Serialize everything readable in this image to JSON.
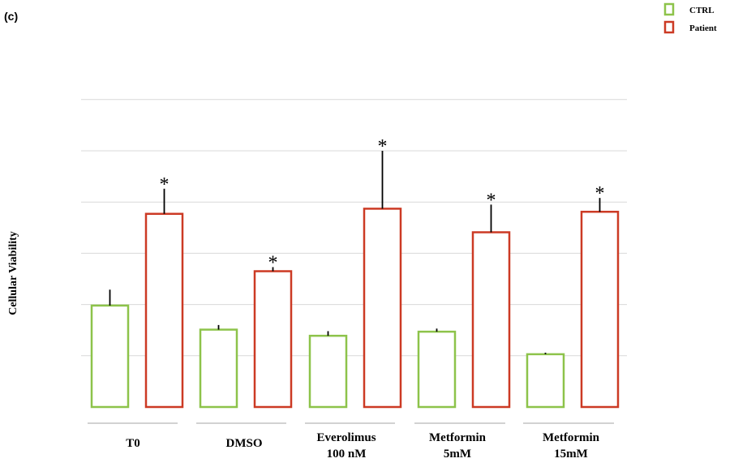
{
  "panel_label": "(c)",
  "colors": {
    "ctrl": "#8dc34a",
    "patient": "#cc3a24",
    "grid": "#d9d9d9",
    "axis_line": "#a6a6a6",
    "error": "#000000"
  },
  "chart_data": {
    "type": "bar",
    "ylabel": "Cellular Viability",
    "xlabel": "",
    "title": "",
    "ylim": [
      0,
      6
    ],
    "grid": true,
    "y_ticks_labeled": false,
    "legend_position": "top-right",
    "categories": [
      [
        "T0"
      ],
      [
        "DMSO"
      ],
      [
        "Everolimus",
        "100 nM"
      ],
      [
        "Metformin",
        "5mM"
      ],
      [
        "Metformin",
        "15mM"
      ]
    ],
    "series": [
      {
        "name": "CTRL",
        "color_key": "ctrl",
        "values": [
          1.98,
          1.51,
          1.39,
          1.47,
          1.03
        ],
        "errors": [
          0.31,
          0.09,
          0.09,
          0.06,
          0.03
        ],
        "significance": [
          "",
          "",
          "",
          "",
          ""
        ]
      },
      {
        "name": "Patient",
        "color_key": "patient",
        "values": [
          3.77,
          2.65,
          3.87,
          3.41,
          3.81
        ],
        "errors": [
          0.49,
          0.08,
          1.13,
          0.54,
          0.27
        ],
        "significance": [
          "*",
          "*",
          "*",
          "*",
          "*"
        ]
      }
    ]
  }
}
